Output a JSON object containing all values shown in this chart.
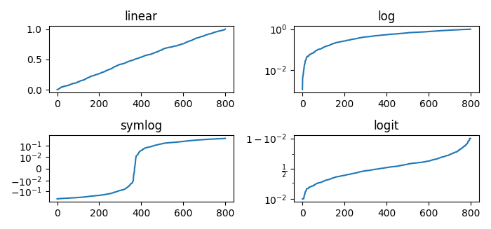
{
  "title_linear": "linear",
  "title_log": "log",
  "title_symlog": "symlog",
  "title_logit": "logit",
  "n_points": 800,
  "line_color": "#1f77b4",
  "figsize": [
    7.0,
    3.27
  ],
  "dpi": 100,
  "symlog_linthresh": 0.01
}
